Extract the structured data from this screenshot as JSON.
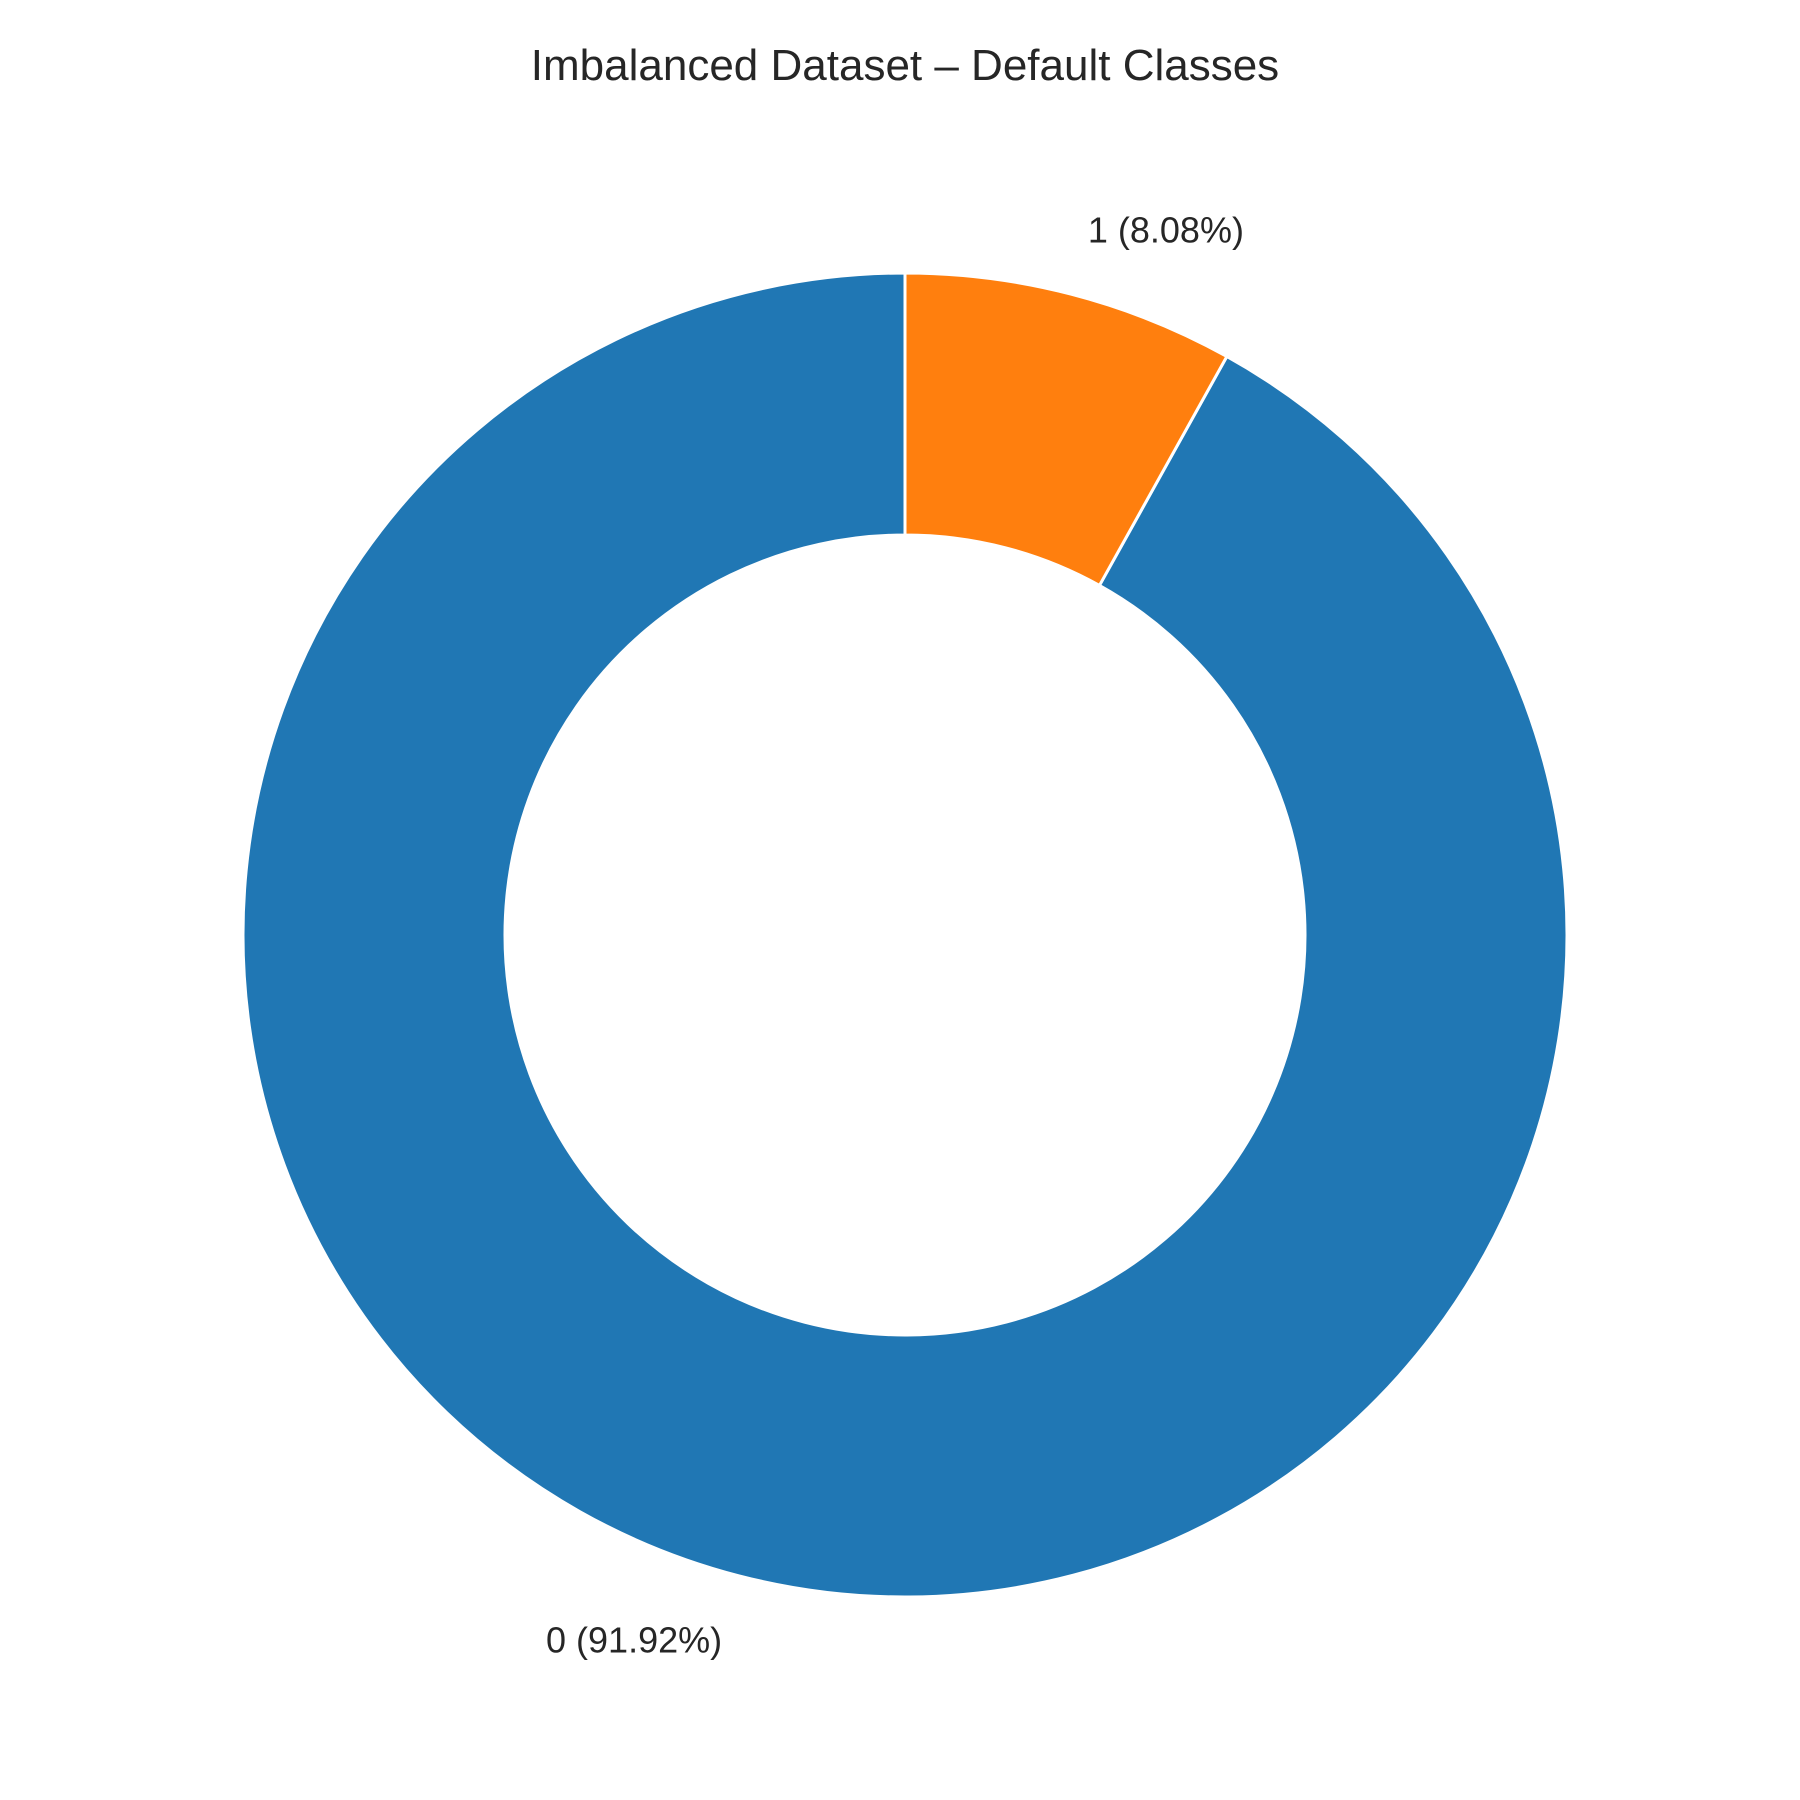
{
  "chart_data": {
    "type": "pie",
    "variant": "donut",
    "title": "Imbalanced Dataset – Default Classes",
    "categories": [
      "0",
      "1"
    ],
    "values": [
      91.92,
      8.08
    ],
    "labels": [
      "0 (91.92%)",
      "1 (8.08%)"
    ],
    "colors": [
      "#2077b4",
      "#ff7f0e"
    ],
    "start_angle_deg": 90,
    "direction": "counterclockwise",
    "legend": "none",
    "grid": false
  }
}
